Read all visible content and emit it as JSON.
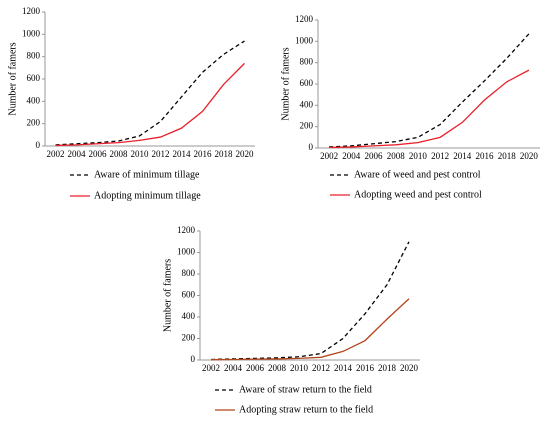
{
  "chart_data": [
    {
      "type": "line",
      "ylabel": "Number of famers",
      "categories": [
        "2002",
        "2004",
        "2006",
        "2008",
        "2010",
        "2012",
        "2014",
        "2016",
        "2018",
        "2020"
      ],
      "ylim": [
        0,
        1200
      ],
      "yticks": [
        0,
        200,
        400,
        600,
        800,
        1000,
        1200
      ],
      "series": [
        {
          "name": "Aware of minimum tillage",
          "color": "#000000",
          "style": "dashed",
          "values": [
            10,
            20,
            30,
            45,
            90,
            220,
            440,
            660,
            820,
            940
          ]
        },
        {
          "name": "Adopting minimum tillage",
          "color": "#e8202a",
          "style": "solid",
          "values": [
            5,
            10,
            20,
            30,
            50,
            80,
            160,
            310,
            550,
            740
          ]
        }
      ]
    },
    {
      "type": "line",
      "ylabel": "Number of famers",
      "categories": [
        "2002",
        "2004",
        "2006",
        "2008",
        "2010",
        "2012",
        "2014",
        "2016",
        "2018",
        "2020"
      ],
      "ylim": [
        0,
        1200
      ],
      "yticks": [
        0,
        200,
        400,
        600,
        800,
        1000,
        1200
      ],
      "series": [
        {
          "name": "Aware of weed and pest control",
          "color": "#000000",
          "style": "dashed",
          "values": [
            10,
            20,
            40,
            60,
            100,
            220,
            430,
            630,
            840,
            1070
          ]
        },
        {
          "name": "Adopting weed and pest control",
          "color": "#e8202a",
          "style": "solid",
          "values": [
            5,
            10,
            20,
            30,
            50,
            100,
            240,
            450,
            620,
            730
          ]
        }
      ]
    },
    {
      "type": "line",
      "ylabel": "Number of famers",
      "categories": [
        "2002",
        "2004",
        "2006",
        "2008",
        "2010",
        "2012",
        "2014",
        "2016",
        "2018",
        "2020"
      ],
      "ylim": [
        0,
        1200
      ],
      "yticks": [
        0,
        200,
        400,
        600,
        800,
        1000,
        1200
      ],
      "series": [
        {
          "name": "Aware of straw return to the field",
          "color": "#000000",
          "style": "dashed",
          "values": [
            5,
            10,
            15,
            20,
            30,
            60,
            200,
            430,
            700,
            1100
          ]
        },
        {
          "name": "Adopting straw return to the field",
          "color": "#b5451b",
          "style": "solid",
          "values": [
            3,
            5,
            8,
            10,
            15,
            25,
            80,
            180,
            380,
            570
          ]
        }
      ]
    }
  ]
}
